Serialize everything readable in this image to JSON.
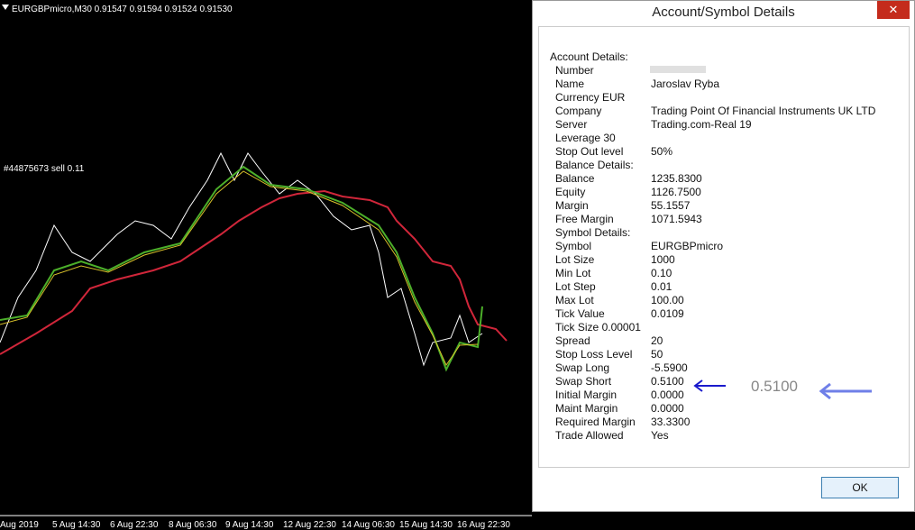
{
  "chart_header": "EURGBPmicro,M30  0.91547 0.91594 0.91524 0.91530",
  "order_label": "#44875673 sell 0.11",
  "time_axis": [
    "Aug 2019",
    "5 Aug 14:30",
    "6 Aug 22:30",
    "8 Aug 06:30",
    "9 Aug 14:30",
    "12 Aug 22:30",
    "14 Aug 06:30",
    "15 Aug 14:30",
    "16 Aug 22:30"
  ],
  "dialog": {
    "title": "Account/Symbol Details",
    "rows": [
      {
        "label": "Account Details:"
      },
      {
        "label": "Number"
      },
      {
        "label": "Name",
        "value": "Jaroslav Ryba"
      },
      {
        "label": "Currency EUR"
      },
      {
        "label": "Company",
        "value": "Trading Point Of Financial Instruments UK LTD"
      },
      {
        "label": "Server",
        "value": "Trading.com-Real 19"
      },
      {
        "label": "Leverage 30"
      },
      {
        "label": "Stop Out level",
        "value": "50%"
      },
      {
        "label": "Balance Details:"
      },
      {
        "label": "Balance",
        "value": "1235.8300"
      },
      {
        "label": "Equity",
        "value": "1126.7500"
      },
      {
        "label": "Margin",
        "value": "55.1557"
      },
      {
        "label": "Free Margin",
        "value": "1071.5943"
      },
      {
        "label": "Symbol Details:"
      },
      {
        "label": "Symbol",
        "value": "EURGBPmicro"
      },
      {
        "label": "Lot Size",
        "value": "1000"
      },
      {
        "label": "Min Lot",
        "value": "0.10"
      },
      {
        "label": "Lot Step",
        "value": "0.01"
      },
      {
        "label": "Max Lot",
        "value": "100.00"
      },
      {
        "label": "Tick Value",
        "value": "0.0109"
      },
      {
        "label": "Tick Size  0.00001"
      },
      {
        "label": "Spread",
        "value": "20"
      },
      {
        "label": "Stop Loss Level",
        "value": "50"
      },
      {
        "label": "Swap Long",
        "value": "-5.5900"
      },
      {
        "label": "Swap Short",
        "value": "0.5100"
      },
      {
        "label": "Initial Margin",
        "value": "0.0000"
      },
      {
        "label": "Maint Margin",
        "value": "0.0000"
      },
      {
        "label": "Required Margin",
        "value": "33.3300"
      },
      {
        "label": "Trade Allowed",
        "value": "Yes"
      }
    ],
    "annotation": "0.5100",
    "ok_button": "OK"
  }
}
